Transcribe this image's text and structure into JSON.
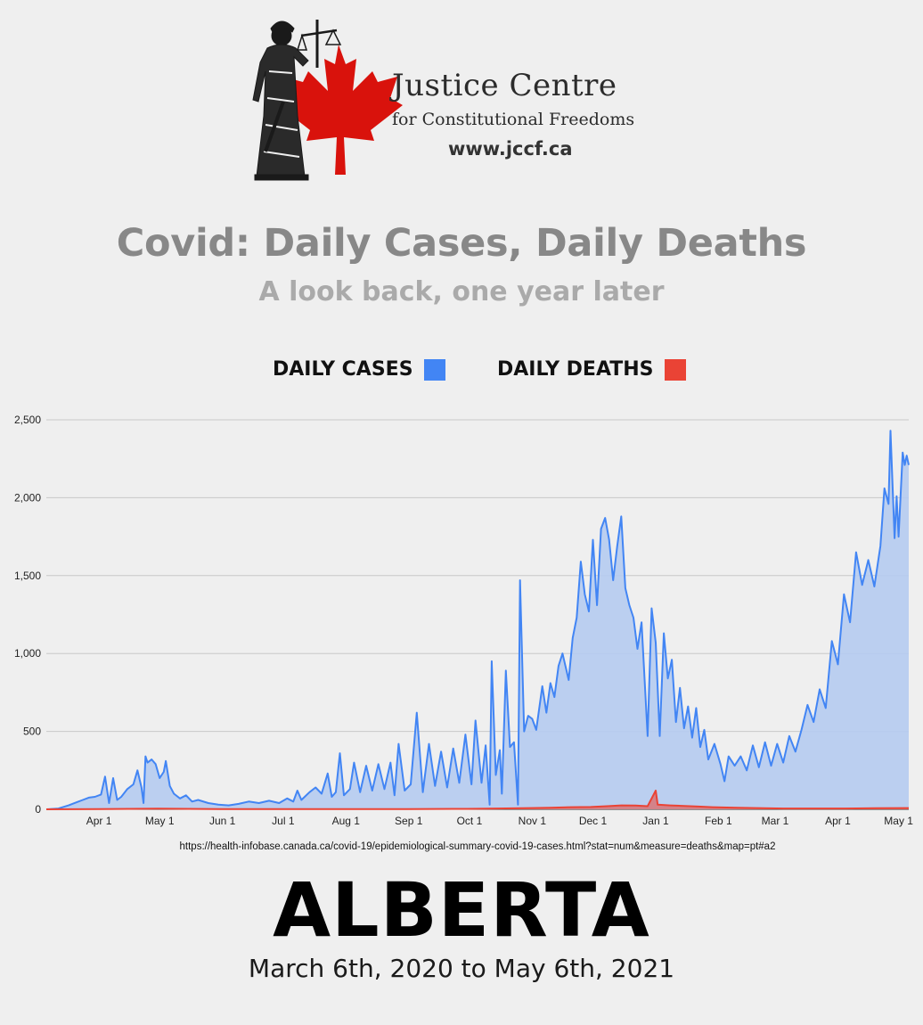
{
  "header": {
    "org_name": "Justice Centre",
    "org_tagline": "for Constitutional Freedoms",
    "org_url": "www.jccf.ca"
  },
  "colors": {
    "cases": "#4285f4",
    "cases_fill": "#b7ccef",
    "deaths": "#ea4335",
    "maple_leaf": "#d9120c",
    "title": "#888888",
    "subtitle": "#aaaaaa"
  },
  "icons": [
    "lady-justice-icon",
    "maple-leaf-icon"
  ],
  "source_url": "https://health-infobase.canada.ca/covid-19/epidemiological-summary-covid-19-cases.html?stat=num&measure=deaths&map=pt#a2",
  "region": "ALBERTA",
  "date_range": "March 6th, 2020 to May 6th, 2021",
  "chart_data": {
    "type": "area",
    "title": "Covid: Daily Cases, Daily Deaths",
    "subtitle": "A look back, one year later",
    "xlabel": "",
    "ylabel": "",
    "x_start": "2020-03-06",
    "x_end": "2021-05-06",
    "xlim": [
      "2020-03-06",
      "2021-05-06"
    ],
    "ylim": [
      0,
      2500
    ],
    "y_ticks": [
      0,
      500,
      1000,
      1500,
      2000,
      2500
    ],
    "y_tick_labels": [
      "0",
      "500",
      "1,000",
      "1,500",
      "2,000",
      "2,500"
    ],
    "x_ticks": [
      "2020-04-01",
      "2020-05-01",
      "2020-06-01",
      "2020-07-01",
      "2020-08-01",
      "2020-09-01",
      "2020-10-01",
      "2020-11-01",
      "2020-12-01",
      "2021-01-01",
      "2021-02-01",
      "2021-03-01",
      "2021-04-01",
      "2021-05-01"
    ],
    "x_tick_labels": [
      "Apr 1",
      "May 1",
      "Jun 1",
      "Jul 1",
      "Aug 1",
      "Sep 1",
      "Oct 1",
      "Nov 1",
      "Dec 1",
      "Jan 1",
      "Feb 1",
      "Mar 1",
      "Apr 1",
      "May 1"
    ],
    "grid": true,
    "legend_position": "top",
    "series": [
      {
        "name": "DAILY CASES",
        "color": "#4285f4",
        "points": [
          [
            "2020-03-06",
            0
          ],
          [
            "2020-03-12",
            5
          ],
          [
            "2020-03-17",
            25
          ],
          [
            "2020-03-21",
            45
          ],
          [
            "2020-03-24",
            60
          ],
          [
            "2020-03-27",
            75
          ],
          [
            "2020-03-30",
            80
          ],
          [
            "2020-04-02",
            95
          ],
          [
            "2020-04-04",
            210
          ],
          [
            "2020-04-06",
            40
          ],
          [
            "2020-04-08",
            200
          ],
          [
            "2020-04-10",
            60
          ],
          [
            "2020-04-12",
            80
          ],
          [
            "2020-04-15",
            130
          ],
          [
            "2020-04-18",
            160
          ],
          [
            "2020-04-20",
            250
          ],
          [
            "2020-04-22",
            140
          ],
          [
            "2020-04-23",
            40
          ],
          [
            "2020-04-24",
            340
          ],
          [
            "2020-04-25",
            300
          ],
          [
            "2020-04-27",
            320
          ],
          [
            "2020-04-29",
            290
          ],
          [
            "2020-05-01",
            200
          ],
          [
            "2020-05-03",
            240
          ],
          [
            "2020-05-04",
            310
          ],
          [
            "2020-05-06",
            150
          ],
          [
            "2020-05-08",
            100
          ],
          [
            "2020-05-11",
            70
          ],
          [
            "2020-05-14",
            90
          ],
          [
            "2020-05-17",
            50
          ],
          [
            "2020-05-20",
            60
          ],
          [
            "2020-05-25",
            40
          ],
          [
            "2020-05-30",
            30
          ],
          [
            "2020-06-04",
            25
          ],
          [
            "2020-06-09",
            35
          ],
          [
            "2020-06-14",
            50
          ],
          [
            "2020-06-19",
            40
          ],
          [
            "2020-06-24",
            55
          ],
          [
            "2020-06-29",
            40
          ],
          [
            "2020-07-03",
            70
          ],
          [
            "2020-07-06",
            50
          ],
          [
            "2020-07-08",
            120
          ],
          [
            "2020-07-10",
            60
          ],
          [
            "2020-07-14",
            110
          ],
          [
            "2020-07-17",
            140
          ],
          [
            "2020-07-20",
            100
          ],
          [
            "2020-07-23",
            230
          ],
          [
            "2020-07-25",
            80
          ],
          [
            "2020-07-27",
            110
          ],
          [
            "2020-07-29",
            360
          ],
          [
            "2020-07-31",
            90
          ],
          [
            "2020-08-03",
            130
          ],
          [
            "2020-08-05",
            300
          ],
          [
            "2020-08-08",
            110
          ],
          [
            "2020-08-11",
            280
          ],
          [
            "2020-08-14",
            120
          ],
          [
            "2020-08-17",
            290
          ],
          [
            "2020-08-20",
            130
          ],
          [
            "2020-08-23",
            300
          ],
          [
            "2020-08-25",
            90
          ],
          [
            "2020-08-27",
            420
          ],
          [
            "2020-08-30",
            120
          ],
          [
            "2020-09-02",
            160
          ],
          [
            "2020-09-05",
            620
          ],
          [
            "2020-09-08",
            110
          ],
          [
            "2020-09-11",
            420
          ],
          [
            "2020-09-14",
            150
          ],
          [
            "2020-09-17",
            370
          ],
          [
            "2020-09-20",
            140
          ],
          [
            "2020-09-23",
            390
          ],
          [
            "2020-09-26",
            170
          ],
          [
            "2020-09-29",
            480
          ],
          [
            "2020-10-02",
            160
          ],
          [
            "2020-10-04",
            570
          ],
          [
            "2020-10-07",
            170
          ],
          [
            "2020-10-09",
            410
          ],
          [
            "2020-10-11",
            30
          ],
          [
            "2020-10-12",
            950
          ],
          [
            "2020-10-14",
            220
          ],
          [
            "2020-10-16",
            380
          ],
          [
            "2020-10-17",
            100
          ],
          [
            "2020-10-19",
            890
          ],
          [
            "2020-10-21",
            400
          ],
          [
            "2020-10-23",
            430
          ],
          [
            "2020-10-25",
            30
          ],
          [
            "2020-10-26",
            1470
          ],
          [
            "2020-10-28",
            500
          ],
          [
            "2020-10-30",
            600
          ],
          [
            "2020-11-01",
            580
          ],
          [
            "2020-11-03",
            510
          ],
          [
            "2020-11-06",
            790
          ],
          [
            "2020-11-08",
            620
          ],
          [
            "2020-11-10",
            810
          ],
          [
            "2020-11-12",
            720
          ],
          [
            "2020-11-14",
            920
          ],
          [
            "2020-11-16",
            1000
          ],
          [
            "2020-11-19",
            830
          ],
          [
            "2020-11-21",
            1100
          ],
          [
            "2020-11-23",
            1230
          ],
          [
            "2020-11-25",
            1590
          ],
          [
            "2020-11-27",
            1380
          ],
          [
            "2020-11-29",
            1270
          ],
          [
            "2020-12-01",
            1730
          ],
          [
            "2020-12-03",
            1310
          ],
          [
            "2020-12-05",
            1800
          ],
          [
            "2020-12-07",
            1870
          ],
          [
            "2020-12-09",
            1730
          ],
          [
            "2020-12-11",
            1470
          ],
          [
            "2020-12-13",
            1690
          ],
          [
            "2020-12-15",
            1880
          ],
          [
            "2020-12-17",
            1420
          ],
          [
            "2020-12-19",
            1310
          ],
          [
            "2020-12-21",
            1230
          ],
          [
            "2020-12-23",
            1030
          ],
          [
            "2020-12-25",
            1200
          ],
          [
            "2020-12-28",
            470
          ],
          [
            "2020-12-30",
            1290
          ],
          [
            "2021-01-01",
            1070
          ],
          [
            "2021-01-03",
            470
          ],
          [
            "2021-01-05",
            1130
          ],
          [
            "2021-01-07",
            840
          ],
          [
            "2021-01-09",
            960
          ],
          [
            "2021-01-11",
            560
          ],
          [
            "2021-01-13",
            780
          ],
          [
            "2021-01-15",
            520
          ],
          [
            "2021-01-17",
            660
          ],
          [
            "2021-01-19",
            460
          ],
          [
            "2021-01-21",
            650
          ],
          [
            "2021-01-23",
            400
          ],
          [
            "2021-01-25",
            510
          ],
          [
            "2021-01-27",
            320
          ],
          [
            "2021-01-30",
            420
          ],
          [
            "2021-02-02",
            290
          ],
          [
            "2021-02-04",
            180
          ],
          [
            "2021-02-06",
            340
          ],
          [
            "2021-02-09",
            280
          ],
          [
            "2021-02-12",
            340
          ],
          [
            "2021-02-15",
            250
          ],
          [
            "2021-02-18",
            410
          ],
          [
            "2021-02-21",
            270
          ],
          [
            "2021-02-24",
            430
          ],
          [
            "2021-02-27",
            280
          ],
          [
            "2021-03-02",
            420
          ],
          [
            "2021-03-05",
            300
          ],
          [
            "2021-03-08",
            470
          ],
          [
            "2021-03-11",
            370
          ],
          [
            "2021-03-14",
            510
          ],
          [
            "2021-03-17",
            670
          ],
          [
            "2021-03-20",
            560
          ],
          [
            "2021-03-23",
            770
          ],
          [
            "2021-03-26",
            650
          ],
          [
            "2021-03-29",
            1080
          ],
          [
            "2021-04-01",
            930
          ],
          [
            "2021-04-04",
            1380
          ],
          [
            "2021-04-07",
            1200
          ],
          [
            "2021-04-10",
            1650
          ],
          [
            "2021-04-13",
            1440
          ],
          [
            "2021-04-16",
            1600
          ],
          [
            "2021-04-19",
            1430
          ],
          [
            "2021-04-22",
            1690
          ],
          [
            "2021-04-24",
            2060
          ],
          [
            "2021-04-26",
            1960
          ],
          [
            "2021-04-27",
            2430
          ],
          [
            "2021-04-29",
            1740
          ],
          [
            "2021-04-30",
            2010
          ],
          [
            "2021-05-01",
            1750
          ],
          [
            "2021-05-03",
            2290
          ],
          [
            "2021-05-04",
            2210
          ],
          [
            "2021-05-05",
            2270
          ],
          [
            "2021-05-06",
            2210
          ]
        ]
      },
      {
        "name": "DAILY DEATHS",
        "color": "#ea4335",
        "points": [
          [
            "2020-03-06",
            0
          ],
          [
            "2020-03-31",
            1
          ],
          [
            "2020-04-30",
            4
          ],
          [
            "2020-05-31",
            1
          ],
          [
            "2020-06-30",
            1
          ],
          [
            "2020-07-31",
            1
          ],
          [
            "2020-08-31",
            2
          ],
          [
            "2020-09-30",
            3
          ],
          [
            "2020-10-15",
            5
          ],
          [
            "2020-10-31",
            8
          ],
          [
            "2020-11-10",
            10
          ],
          [
            "2020-11-20",
            14
          ],
          [
            "2020-11-30",
            15
          ],
          [
            "2020-12-08",
            20
          ],
          [
            "2020-12-15",
            25
          ],
          [
            "2020-12-22",
            24
          ],
          [
            "2020-12-28",
            20
          ],
          [
            "2021-01-01",
            120
          ],
          [
            "2021-01-02",
            30
          ],
          [
            "2021-01-08",
            25
          ],
          [
            "2021-01-15",
            22
          ],
          [
            "2021-01-22",
            18
          ],
          [
            "2021-01-29",
            14
          ],
          [
            "2021-02-10",
            10
          ],
          [
            "2021-02-20",
            8
          ],
          [
            "2021-03-05",
            5
          ],
          [
            "2021-03-20",
            5
          ],
          [
            "2021-04-05",
            5
          ],
          [
            "2021-04-20",
            7
          ],
          [
            "2021-05-06",
            8
          ]
        ]
      }
    ]
  }
}
